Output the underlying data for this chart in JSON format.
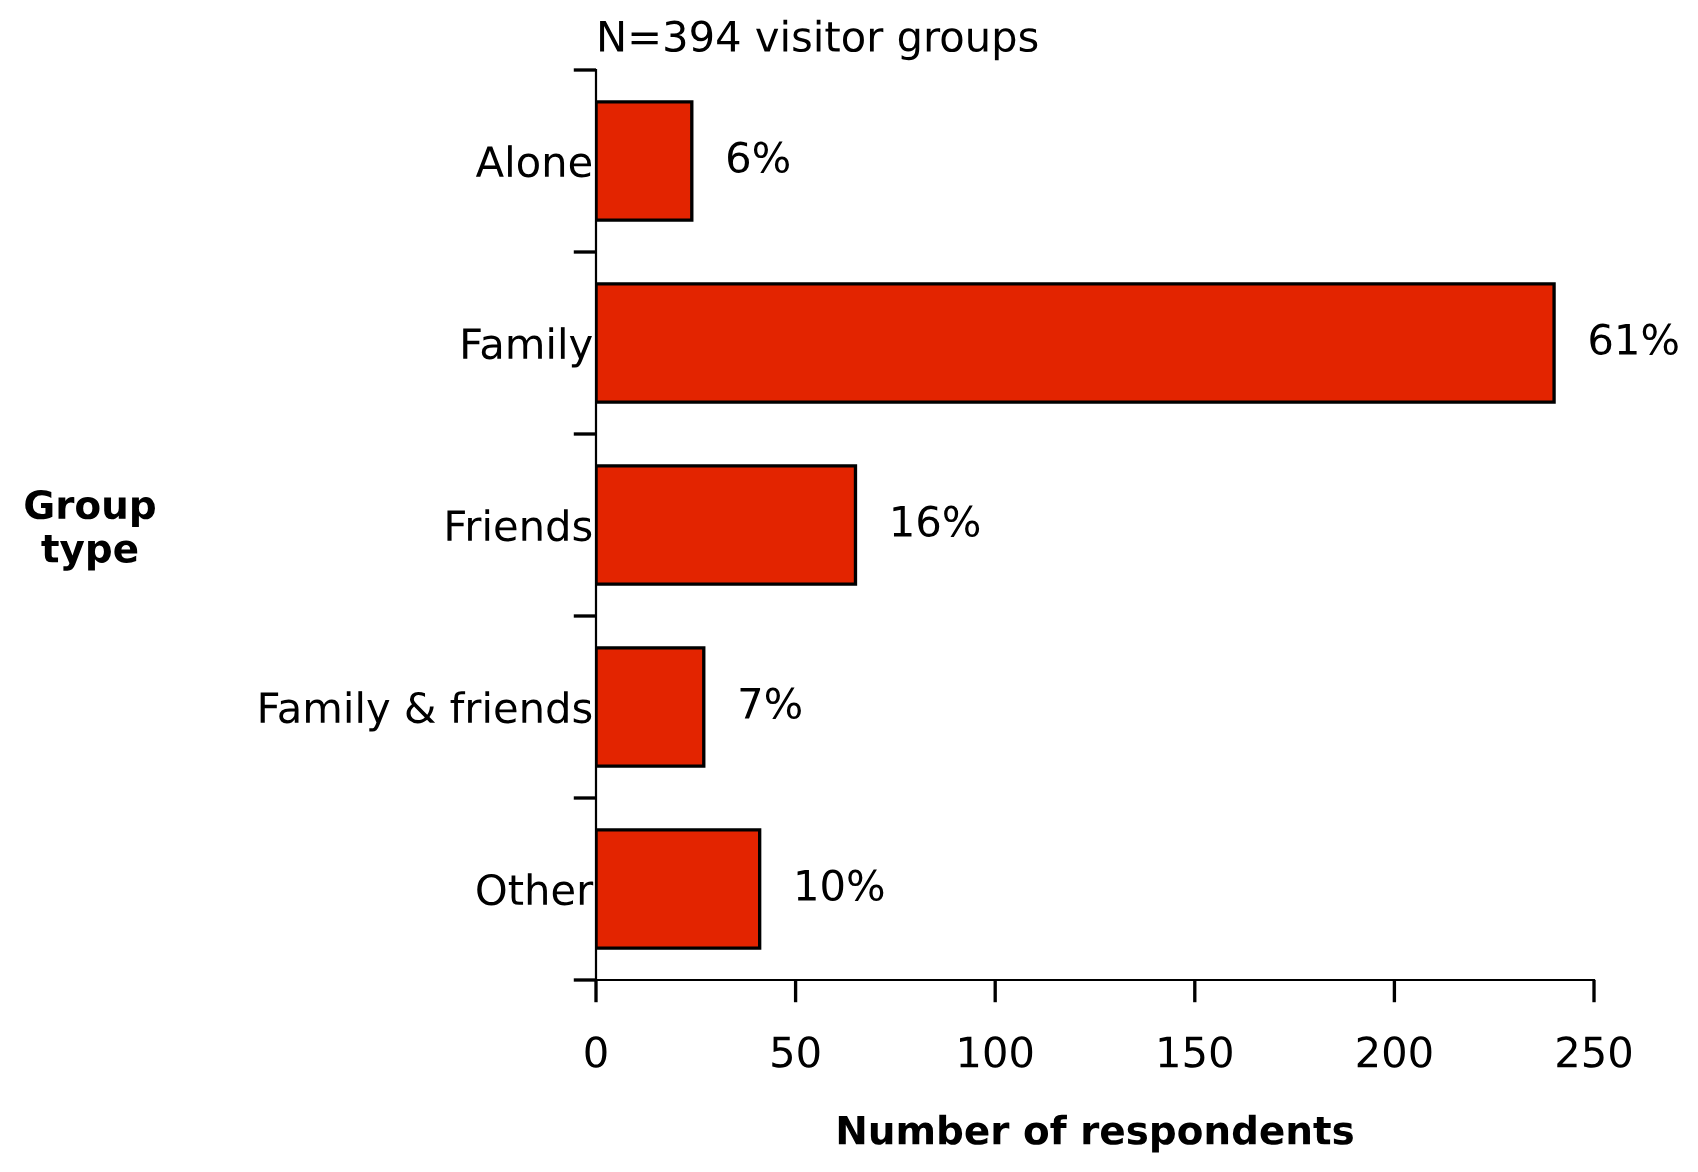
{
  "chart_data": {
    "type": "bar",
    "orientation": "horizontal",
    "title": "N=394 visitor groups",
    "xlabel": "Number of respondents",
    "ylabel": "Group type",
    "categories": [
      "Alone",
      "Family",
      "Friends",
      "Family & friends",
      "Other"
    ],
    "values": [
      24,
      240,
      65,
      27,
      41
    ],
    "annotations": [
      {
        "text": "6%",
        "x": 24,
        "y": "Alone"
      },
      {
        "text": "61%",
        "x": 240,
        "y": "Family"
      },
      {
        "text": "16%",
        "x": 65,
        "y": "Friends"
      },
      {
        "text": "7%",
        "x": 27,
        "y": "Family & friends"
      },
      {
        "text": "10%",
        "x": 41,
        "y": "Other"
      }
    ],
    "color": "#e32400",
    "xlim": [
      0,
      250
    ],
    "xticks": [
      0,
      50,
      100,
      150,
      200,
      250
    ],
    "grid": false,
    "legend": false
  }
}
